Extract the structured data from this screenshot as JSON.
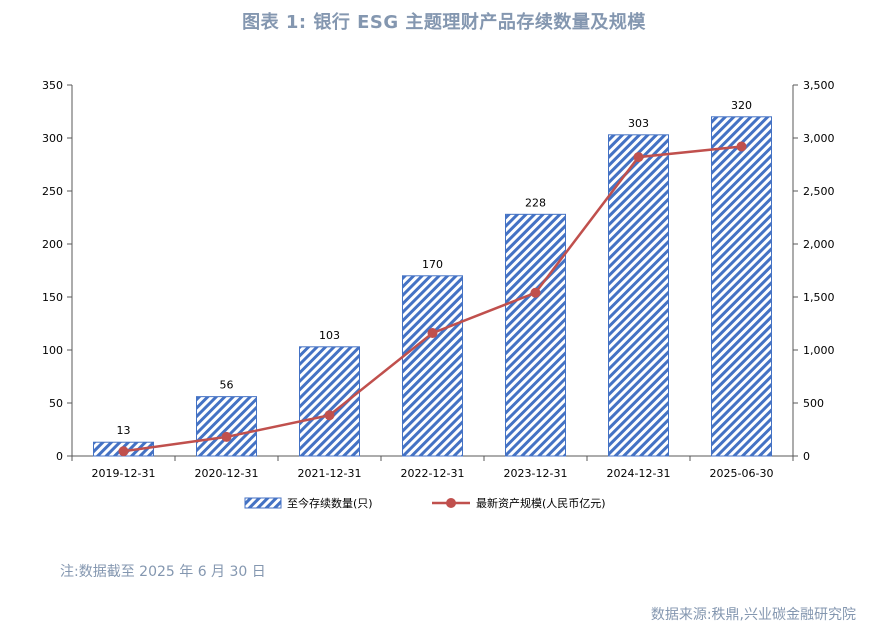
{
  "title": "图表 1:  银行 ESG 主题理财产品存续数量及规模",
  "note": "注:数据截至 2025 年 6 月 30 日",
  "source": "数据来源:秩鼎,兴业碳金融研究院",
  "colors": {
    "bar": "#4472c4",
    "line": "#c0504d",
    "text": "#8497b0"
  },
  "chart_data": {
    "type": "bar+line",
    "categories": [
      "2019-12-31",
      "2020-12-31",
      "2021-12-31",
      "2022-12-31",
      "2023-12-31",
      "2024-12-31",
      "2025-06-30"
    ],
    "series": [
      {
        "name": "至今存续数量(只)",
        "type": "bar",
        "axis": "left",
        "values": [
          13,
          56,
          103,
          170,
          228,
          303,
          320
        ],
        "data_labels": [
          "13",
          "56",
          "103",
          "170",
          "228",
          "303",
          "320"
        ]
      },
      {
        "name": "最新资产规模(人民币亿元)",
        "type": "line",
        "axis": "right",
        "values": [
          45,
          180,
          385,
          1160,
          1540,
          2820,
          2920
        ]
      }
    ],
    "y_left": {
      "min": 0,
      "max": 350,
      "ticks": [
        0,
        50,
        100,
        150,
        200,
        250,
        300,
        350
      ],
      "tick_labels": [
        "0",
        "50",
        "100",
        "150",
        "200",
        "250",
        "300",
        "350"
      ]
    },
    "y_right": {
      "min": 0,
      "max": 3500,
      "ticks": [
        0,
        500,
        1000,
        1500,
        2000,
        2500,
        3000,
        3500
      ],
      "tick_labels": [
        "0",
        "500",
        "1,000",
        "1,500",
        "2,000",
        "2,500",
        "3,000",
        "3,500"
      ]
    },
    "grid": false,
    "legend_position": "bottom"
  }
}
